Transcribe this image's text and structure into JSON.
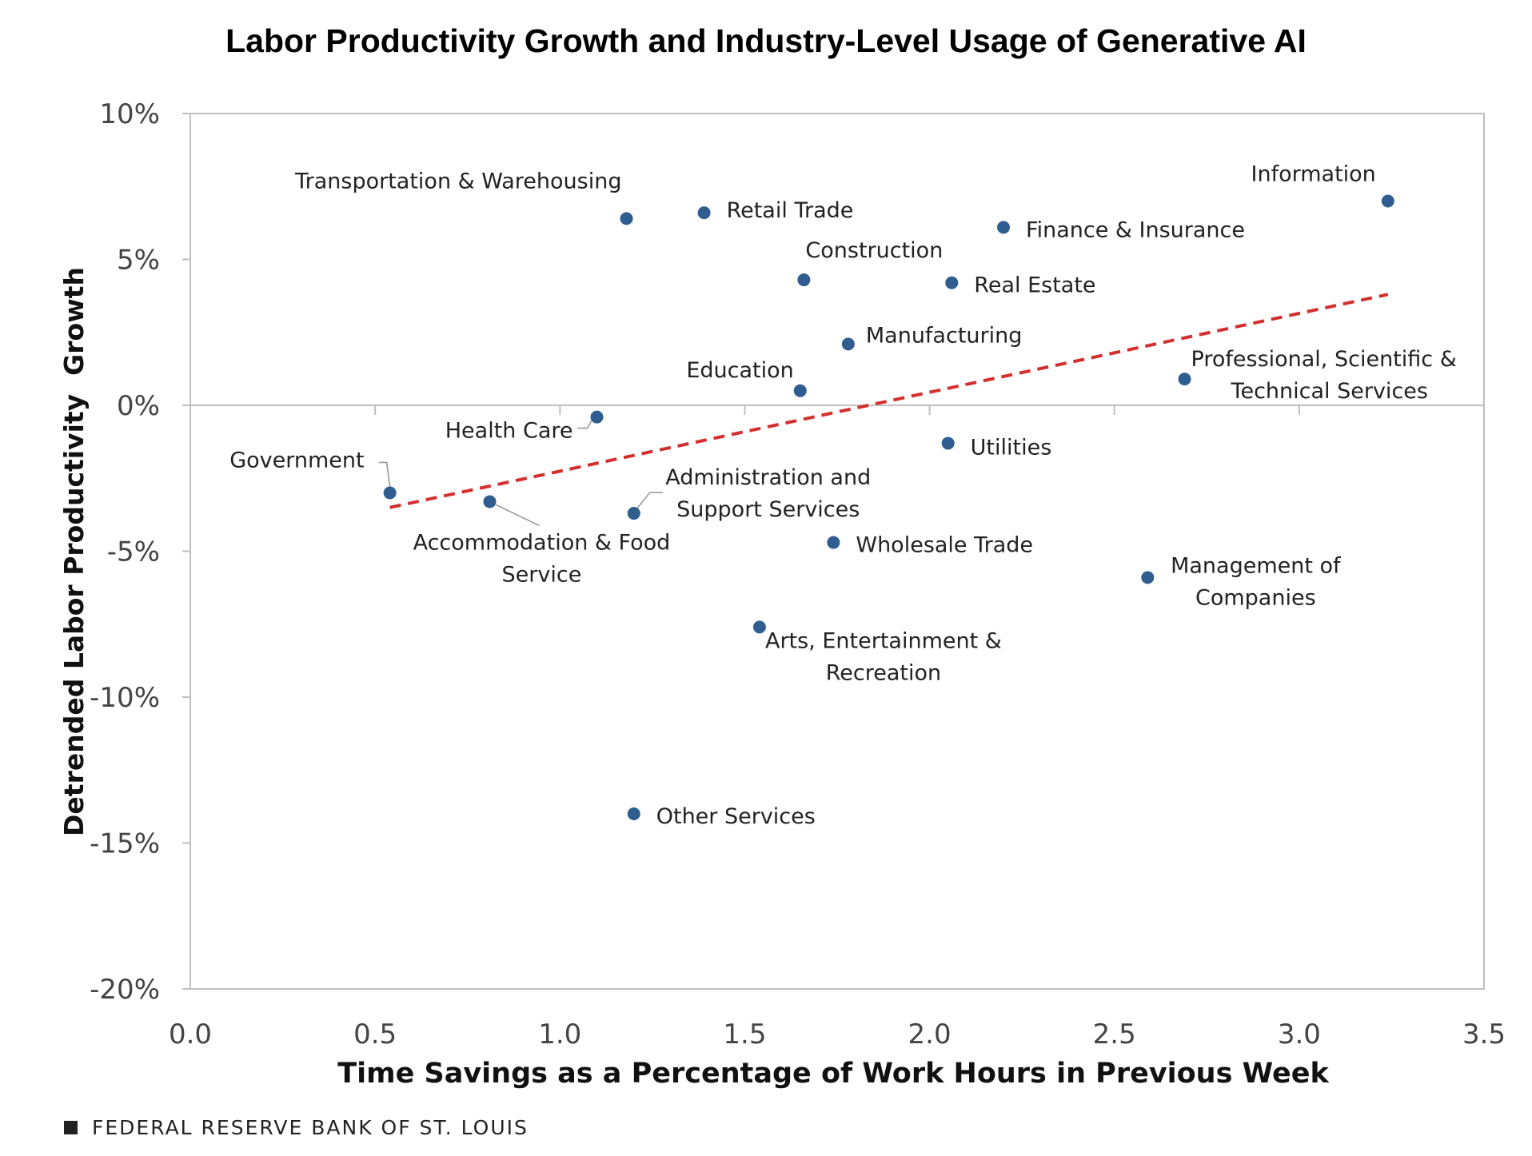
{
  "title": "Labor Productivity Growth and Industry-Level Usage of Generative AI",
  "footer": "FEDERAL RESERVE BANK OF ST. LOUIS",
  "colors": {
    "point": "#2f5d8f",
    "trend": "#d32f2f",
    "axis": "#bfbfbf",
    "text": "#222222"
  },
  "chart_data": {
    "type": "scatter",
    "xlabel": "Time Savings as a Percentage of Work Hours in Previous Week",
    "ylabel": "Detrended Labor Productivity  Growth",
    "xlim": [
      0,
      3.5
    ],
    "ylim": [
      -20,
      10
    ],
    "x_ticks": [
      {
        "v": 0,
        "label": "0.0"
      },
      {
        "v": 0.5,
        "label": "0.5"
      },
      {
        "v": 1,
        "label": "1.0"
      },
      {
        "v": 1.5,
        "label": "1.5"
      },
      {
        "v": 2,
        "label": "2.0"
      },
      {
        "v": 2.5,
        "label": "2.5"
      },
      {
        "v": 3,
        "label": "3.0"
      },
      {
        "v": 3.5,
        "label": "3.5"
      }
    ],
    "y_ticks": [
      {
        "v": 10,
        "label": "10%"
      },
      {
        "v": 5,
        "label": "5%"
      },
      {
        "v": 0,
        "label": "0%"
      },
      {
        "v": -5,
        "label": "-5%"
      },
      {
        "v": -10,
        "label": "-10%"
      },
      {
        "v": -15,
        "label": "-15%"
      },
      {
        "v": -20,
        "label": "-20%"
      }
    ],
    "points": [
      {
        "label": "Transportation & Warehousing",
        "x": 1.18,
        "y": 6.4
      },
      {
        "label": "Retail Trade",
        "x": 1.39,
        "y": 6.6
      },
      {
        "label": "Construction",
        "x": 1.66,
        "y": 4.3
      },
      {
        "label": "Finance & Insurance",
        "x": 2.2,
        "y": 6.1
      },
      {
        "label": "Information",
        "x": 3.24,
        "y": 7.0
      },
      {
        "label": "Real Estate",
        "x": 2.06,
        "y": 4.2
      },
      {
        "label": "Manufacturing",
        "x": 1.78,
        "y": 2.1
      },
      {
        "label": "Education",
        "x": 1.65,
        "y": 0.5
      },
      {
        "label": "Professional, Scientific & Technical Services",
        "x": 2.69,
        "y": 0.9
      },
      {
        "label": "Health Care",
        "x": 1.1,
        "y": -0.4
      },
      {
        "label": "Utilities",
        "x": 2.05,
        "y": -1.3
      },
      {
        "label": "Government",
        "x": 0.54,
        "y": -3.0
      },
      {
        "label": "Accommodation  & Food Service",
        "x": 0.81,
        "y": -3.3
      },
      {
        "label": "Administration and Support  Services",
        "x": 1.2,
        "y": -3.7
      },
      {
        "label": "Wholesale Trade",
        "x": 1.74,
        "y": -4.7
      },
      {
        "label": "Management of Companies",
        "x": 2.59,
        "y": -5.9
      },
      {
        "label": "Arts, Entertainment & Recreation",
        "x": 1.54,
        "y": -7.6
      },
      {
        "label": "Other Services",
        "x": 1.2,
        "y": -14.0
      }
    ],
    "trendline": {
      "x": [
        0.54,
        3.24
      ],
      "y": [
        -3.5,
        3.8
      ],
      "style": "dashed"
    },
    "grid": false,
    "legend": false
  }
}
